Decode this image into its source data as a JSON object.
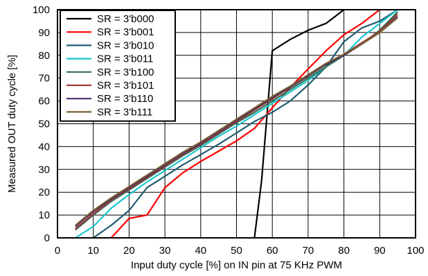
{
  "chart_data": {
    "type": "line",
    "title": "",
    "xlabel": "Input duty cycle [%] on IN pin at 75 KHz PWM",
    "ylabel": "Measured OUT duty cycle [%]",
    "xlim": [
      0,
      100
    ],
    "ylim": [
      0,
      100
    ],
    "x_ticks": [
      "0",
      "10",
      "20",
      "30",
      "40",
      "50",
      "60",
      "70",
      "80",
      "90",
      "100"
    ],
    "y_ticks": [
      "0",
      "10",
      "20",
      "30",
      "40",
      "50",
      "60",
      "70",
      "80",
      "90",
      "100"
    ],
    "grid": true,
    "legend_position": "top-left",
    "series": [
      {
        "name": "SR = 3'b000",
        "color": "#000000",
        "points": [
          [
            55,
            0
          ],
          [
            57,
            25
          ],
          [
            60,
            82
          ],
          [
            65,
            87
          ],
          [
            70,
            91
          ],
          [
            75,
            94
          ],
          [
            80,
            100
          ]
        ]
      },
      {
        "name": "SR = 3'b001",
        "color": "#ff0000",
        "points": [
          [
            15,
            0
          ],
          [
            20,
            8.5
          ],
          [
            25,
            10
          ],
          [
            30,
            22
          ],
          [
            35,
            28.5
          ],
          [
            40,
            33.5
          ],
          [
            45,
            38
          ],
          [
            50,
            42.5
          ],
          [
            55,
            48
          ],
          [
            60,
            57
          ],
          [
            65,
            66
          ],
          [
            70,
            74
          ],
          [
            75,
            82
          ],
          [
            80,
            89
          ],
          [
            85,
            94
          ],
          [
            90,
            100
          ]
        ]
      },
      {
        "name": "SR = 3'b010",
        "color": "#1f5a70",
        "points": [
          [
            10,
            0
          ],
          [
            15,
            5.5
          ],
          [
            20,
            12
          ],
          [
            25,
            22
          ],
          [
            30,
            27
          ],
          [
            35,
            32
          ],
          [
            40,
            36.5
          ],
          [
            45,
            41
          ],
          [
            50,
            46
          ],
          [
            55,
            51
          ],
          [
            60,
            55
          ],
          [
            65,
            60
          ],
          [
            70,
            67
          ],
          [
            75,
            75
          ],
          [
            80,
            86
          ],
          [
            85,
            92
          ],
          [
            90,
            95
          ],
          [
            95,
            100
          ]
        ]
      },
      {
        "name": "SR = 3'b011",
        "color": "#19c6cc",
        "points": [
          [
            5,
            0
          ],
          [
            10,
            5
          ],
          [
            15,
            13
          ],
          [
            20,
            19
          ],
          [
            25,
            24.5
          ],
          [
            30,
            29.5
          ],
          [
            35,
            34.5
          ],
          [
            40,
            39.5
          ],
          [
            45,
            44.5
          ],
          [
            50,
            49
          ],
          [
            55,
            54
          ],
          [
            60,
            59
          ],
          [
            65,
            64
          ],
          [
            70,
            69
          ],
          [
            75,
            75
          ],
          [
            80,
            80
          ],
          [
            85,
            88
          ],
          [
            90,
            94
          ],
          [
            95,
            100
          ]
        ]
      },
      {
        "name": "SR = 3'b100",
        "color": "#2e6e4e",
        "points": [
          [
            5,
            3.5
          ],
          [
            10,
            10
          ],
          [
            15,
            16
          ],
          [
            20,
            21
          ],
          [
            25,
            26
          ],
          [
            30,
            31
          ],
          [
            35,
            36
          ],
          [
            40,
            40.5
          ],
          [
            45,
            45.5
          ],
          [
            50,
            50.5
          ],
          [
            55,
            55
          ],
          [
            60,
            60
          ],
          [
            65,
            65
          ],
          [
            70,
            70
          ],
          [
            75,
            75
          ],
          [
            80,
            80
          ],
          [
            85,
            85
          ],
          [
            90,
            91
          ],
          [
            95,
            99
          ]
        ]
      },
      {
        "name": "SR = 3'b101",
        "color": "#a03a3a",
        "points": [
          [
            5,
            4
          ],
          [
            10,
            10.5
          ],
          [
            15,
            16.5
          ],
          [
            20,
            21.5
          ],
          [
            25,
            26.5
          ],
          [
            30,
            31.5
          ],
          [
            35,
            36.5
          ],
          [
            40,
            41
          ],
          [
            45,
            46
          ],
          [
            50,
            51
          ],
          [
            55,
            56
          ],
          [
            60,
            61
          ],
          [
            65,
            66
          ],
          [
            70,
            71
          ],
          [
            75,
            76
          ],
          [
            80,
            80.5
          ],
          [
            85,
            85.5
          ],
          [
            90,
            90.5
          ],
          [
            95,
            98
          ]
        ]
      },
      {
        "name": "SR = 3'b110",
        "color": "#4a2a6a",
        "points": [
          [
            5,
            5
          ],
          [
            10,
            11.5
          ],
          [
            15,
            17
          ],
          [
            20,
            22
          ],
          [
            25,
            27
          ],
          [
            30,
            32
          ],
          [
            35,
            37
          ],
          [
            40,
            41.5
          ],
          [
            45,
            46.5
          ],
          [
            50,
            51.5
          ],
          [
            55,
            56.5
          ],
          [
            60,
            61.5
          ],
          [
            65,
            66
          ],
          [
            70,
            71
          ],
          [
            75,
            76
          ],
          [
            80,
            80
          ],
          [
            85,
            85
          ],
          [
            90,
            90
          ],
          [
            95,
            97
          ]
        ]
      },
      {
        "name": "SR = 3'b111",
        "color": "#7a6030",
        "points": [
          [
            5,
            5.5
          ],
          [
            10,
            12
          ],
          [
            15,
            17.5
          ],
          [
            20,
            22.5
          ],
          [
            25,
            27.5
          ],
          [
            30,
            32.5
          ],
          [
            35,
            37.5
          ],
          [
            40,
            42
          ],
          [
            45,
            47
          ],
          [
            50,
            52
          ],
          [
            55,
            57
          ],
          [
            60,
            62
          ],
          [
            65,
            66.5
          ],
          [
            70,
            71.5
          ],
          [
            75,
            76.5
          ],
          [
            80,
            80.5
          ],
          [
            85,
            85
          ],
          [
            90,
            90
          ],
          [
            95,
            96.5
          ]
        ]
      }
    ]
  }
}
